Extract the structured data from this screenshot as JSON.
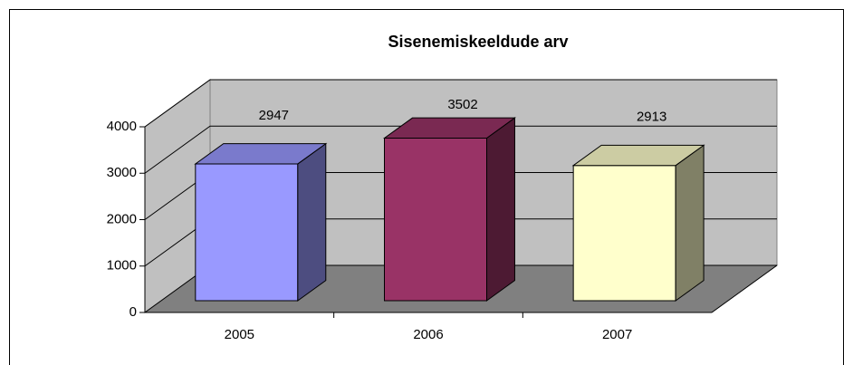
{
  "chart_data": {
    "type": "bar3d",
    "title": "Sisenemiskeeldude arv",
    "categories": [
      "2005",
      "2006",
      "2007"
    ],
    "values": [
      2947,
      3502,
      2913
    ],
    "colors": [
      "#9999ff",
      "#993366",
      "#ffffcc"
    ],
    "ylim": [
      0,
      4000
    ],
    "yticks": [
      0,
      1000,
      2000,
      3000,
      4000
    ],
    "grid": true
  }
}
